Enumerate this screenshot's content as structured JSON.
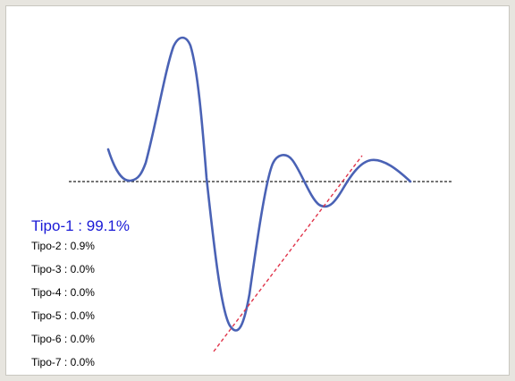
{
  "classification": {
    "top": {
      "label": "Tipo-1",
      "value": "99.1%"
    },
    "others": [
      {
        "label": "Tipo-2",
        "value": "0.9%"
      },
      {
        "label": "Tipo-3",
        "value": "0.0%"
      },
      {
        "label": "Tipo-4",
        "value": "0.0%"
      },
      {
        "label": "Tipo-5",
        "value": "0.0%"
      },
      {
        "label": "Tipo-6",
        "value": "0.0%"
      },
      {
        "label": "Tipo-7",
        "value": "0.0%"
      }
    ]
  },
  "colors": {
    "waveform": "#4a62b5",
    "baseline": "#222222",
    "trendline": "#e0344a",
    "top_label": "#1a1ad6",
    "frame_background": "#ffffff",
    "page_background": "#e7e5df"
  }
}
